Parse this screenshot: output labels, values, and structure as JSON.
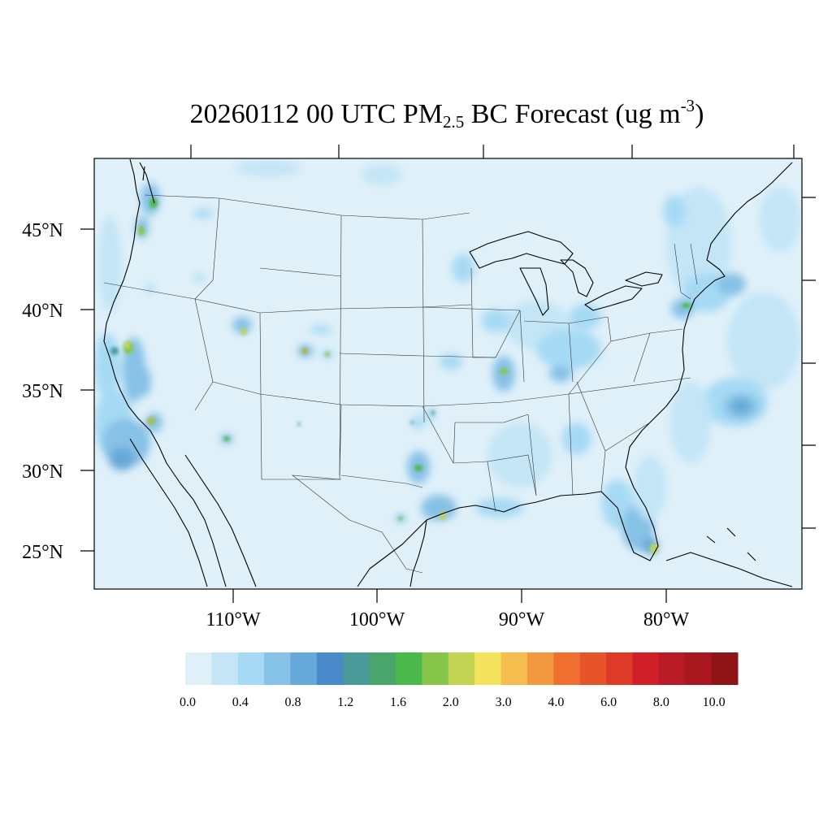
{
  "title": {
    "prefix": "20260112 00 UTC PM",
    "subscript": "2.5",
    "middle": " BC Forecast (ug m",
    "superscript": "-3",
    "suffix": ")"
  },
  "map": {
    "background_color": "#dff0f9",
    "latitude_labels": [
      "45°N",
      "40°N",
      "35°N",
      "30°N",
      "25°N"
    ],
    "longitude_labels": [
      "110°W",
      "100°W",
      "90°W",
      "80°W"
    ]
  },
  "colorbar": {
    "colors": [
      "#dff0f9",
      "#c3e5f6",
      "#a6daf4",
      "#86c1e6",
      "#66a8d9",
      "#4a8acb",
      "#4a9a9a",
      "#4aa56a",
      "#4ab84a",
      "#86c54a",
      "#c2d452",
      "#f4e35c",
      "#f5bd4e",
      "#f29940",
      "#ef7030",
      "#e8542a",
      "#de3a28",
      "#d11f2a",
      "#b81a26",
      "#a8181e",
      "#8f1418"
    ],
    "labels": [
      "0.0",
      "0.4",
      "0.8",
      "1.2",
      "1.6",
      "2.0",
      "3.0",
      "4.0",
      "6.0",
      "8.0",
      "10.0"
    ]
  }
}
